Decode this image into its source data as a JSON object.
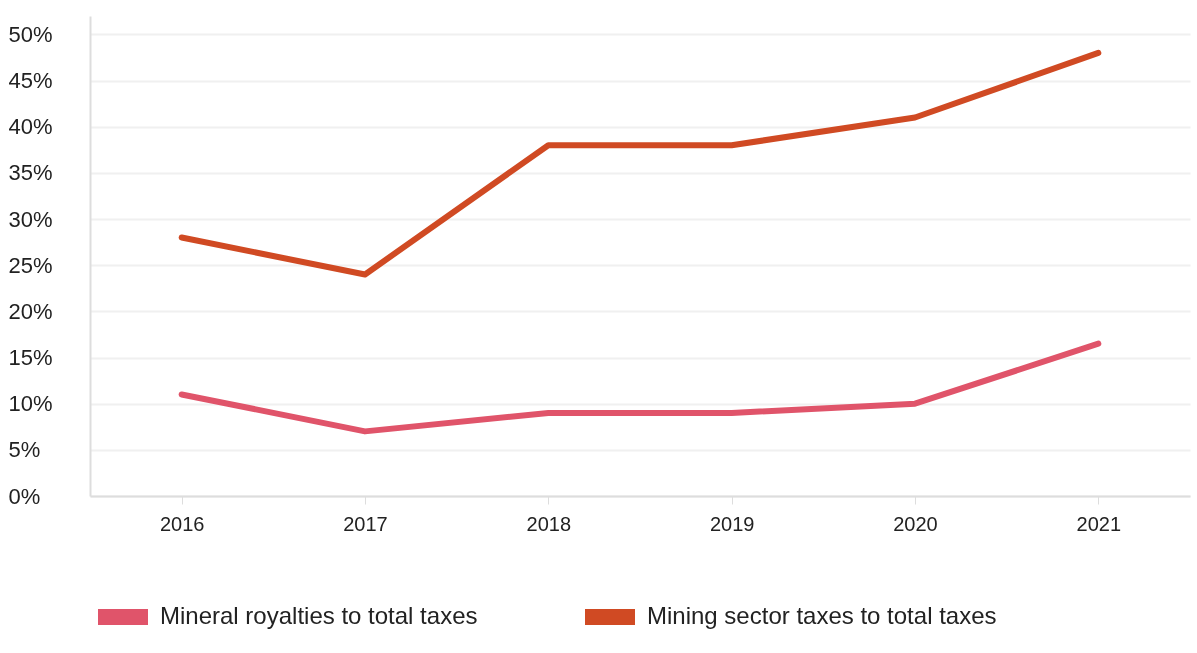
{
  "chart_data": {
    "type": "line",
    "categories": [
      "2016",
      "2017",
      "2018",
      "2019",
      "2020",
      "2021"
    ],
    "series": [
      {
        "name": "Mineral royalties to total taxes",
        "color": "#e0546a",
        "values": [
          11,
          7,
          9,
          9,
          10,
          16.5
        ]
      },
      {
        "name": "Mining sector taxes to total taxes",
        "color": "#d04a23",
        "values": [
          28,
          24,
          38,
          38,
          41,
          48
        ]
      }
    ],
    "ylim": [
      0,
      52
    ],
    "yticks": [
      {
        "value": 0,
        "label": "0%"
      },
      {
        "value": 5,
        "label": "5%"
      },
      {
        "value": 10,
        "label": "10%"
      },
      {
        "value": 15,
        "label": "15%"
      },
      {
        "value": 20,
        "label": "20%"
      },
      {
        "value": 25,
        "label": "25%"
      },
      {
        "value": 30,
        "label": "30%"
      },
      {
        "value": 35,
        "label": "35%"
      },
      {
        "value": 40,
        "label": "40%"
      },
      {
        "value": 45,
        "label": "45%"
      },
      {
        "value": 50,
        "label": "50%"
      }
    ],
    "grid": "y",
    "legend": "bottom",
    "marker": "none",
    "line_style": "solid"
  }
}
